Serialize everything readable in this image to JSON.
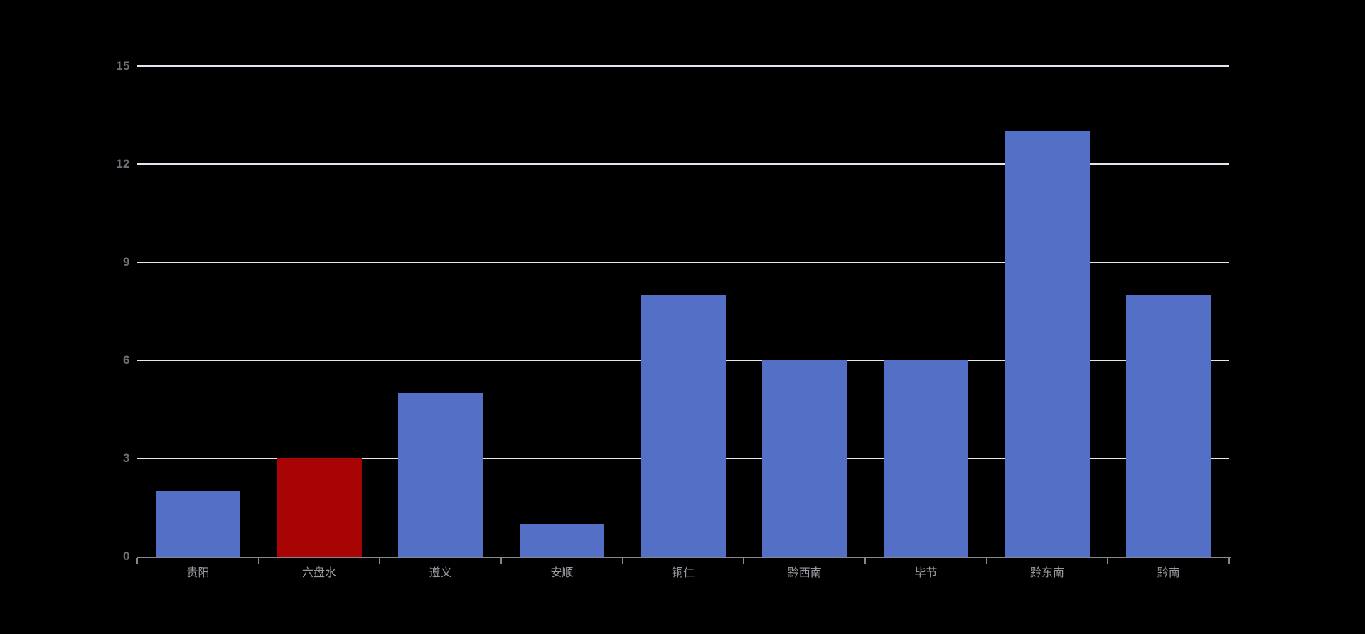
{
  "chart_data": {
    "type": "bar",
    "title": "",
    "xlabel": "",
    "ylabel": "",
    "categories": [
      "贵阳",
      "六盘水",
      "遵义",
      "安顺",
      "铜仁",
      "黔西南",
      "毕节",
      "黔东南",
      "黔南"
    ],
    "values": [
      2,
      3,
      5,
      1,
      8,
      6,
      6,
      13,
      8
    ],
    "bar_colors": [
      "#5470c6",
      "#a80404",
      "#5470c6",
      "#5470c6",
      "#5470c6",
      "#5470c6",
      "#5470c6",
      "#5470c6",
      "#5470c6"
    ],
    "highlighted_category": "六盘水",
    "y_ticks": [
      0,
      3,
      6,
      9,
      12,
      15
    ],
    "ylim": [
      0,
      15
    ],
    "grid": true,
    "legend": "none",
    "bar_width_fraction": 0.7
  },
  "colors": {
    "background": "#000000",
    "bar_default": "#5470c6",
    "bar_highlight": "#a80404",
    "gridline": "#e1e6f0",
    "axis_line": "#85878c",
    "y_tick_label": "#6e7279",
    "x_tick_label": "#979aa0"
  }
}
